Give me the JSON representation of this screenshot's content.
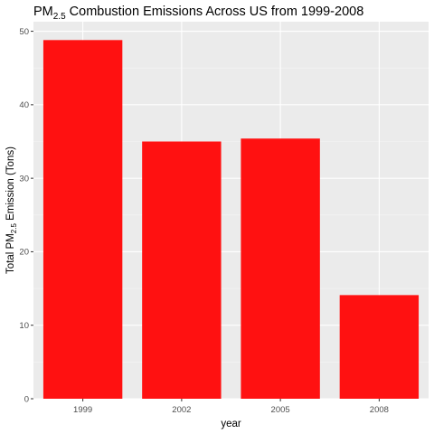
{
  "chart_data": {
    "type": "bar",
    "title": {
      "prefix": "PM",
      "subscript": "2.5",
      "suffix": " Combustion Emissions Across US from 1999-2008"
    },
    "xlabel": "year",
    "ylabel": {
      "prefix": "Total PM",
      "subscript": "2.5",
      "suffix": " Emission (Tons)"
    },
    "categories": [
      "1999",
      "2002",
      "2005",
      "2008"
    ],
    "values": [
      48.8,
      35.0,
      35.4,
      14.1
    ],
    "ylim": [
      0,
      51.3
    ],
    "yticks": [
      0,
      10,
      20,
      30,
      40,
      50
    ],
    "ytick_labels": [
      "0",
      "10",
      "20",
      "30",
      "40",
      "50"
    ],
    "grid": true,
    "legend": "none",
    "colors": {
      "bar": "#ff1111",
      "panel": "#ebebeb",
      "grid_major": "#ffffff",
      "grid_minor": "#f5f5f5"
    }
  }
}
